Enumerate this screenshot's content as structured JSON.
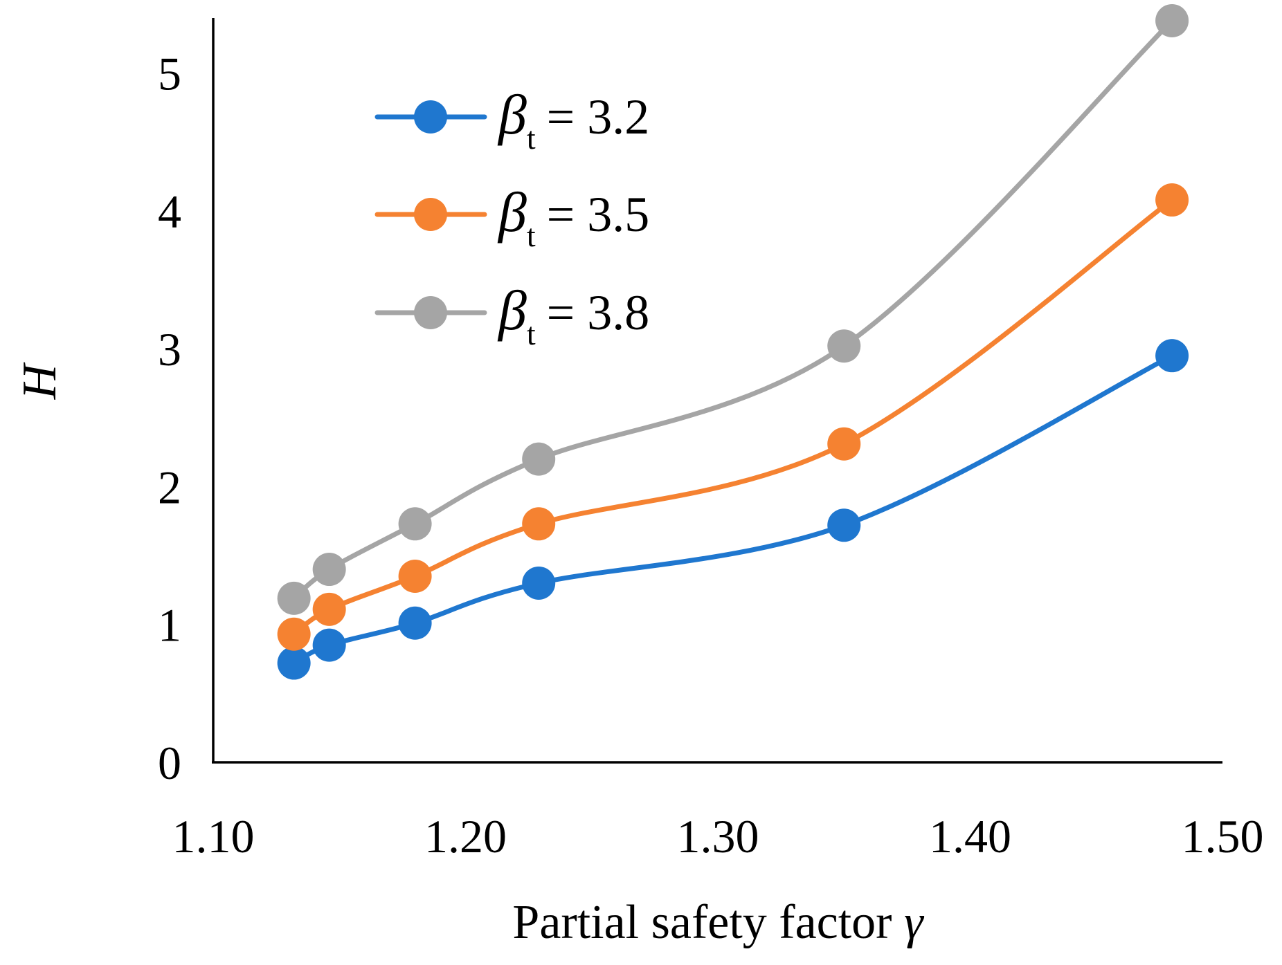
{
  "chart_data": {
    "type": "line",
    "smooth": true,
    "title": "",
    "xlabel": "Partial safety factor",
    "xlabel_symbol": "γ",
    "ylabel": "H",
    "xlim": [
      1.1,
      1.5
    ],
    "ylim": [
      0,
      5.4
    ],
    "xticks": [
      "1.10",
      "1.20",
      "1.30",
      "1.40",
      "1.50"
    ],
    "yticks": [
      "0",
      "1",
      "2",
      "3",
      "4",
      "5"
    ],
    "legend_position": "top-left",
    "x": [
      1.132,
      1.146,
      1.18,
      1.229,
      1.35,
      1.48
    ],
    "series": [
      {
        "name": "β_t = 3.2",
        "symbol": "β",
        "subscript": "t",
        "value_label": "= 3.2",
        "color": "#1F77CF",
        "values": [
          0.72,
          0.85,
          1.01,
          1.3,
          1.72,
          2.95
        ]
      },
      {
        "name": "β_t = 3.5",
        "symbol": "β",
        "subscript": "t",
        "value_label": "= 3.5",
        "color": "#F58231",
        "values": [
          0.93,
          1.11,
          1.35,
          1.73,
          2.31,
          4.08
        ]
      },
      {
        "name": "β_t = 3.8",
        "symbol": "β",
        "subscript": "t",
        "value_label": "= 3.8",
        "color": "#A5A5A5",
        "values": [
          1.19,
          1.4,
          1.73,
          2.2,
          3.02,
          5.38
        ]
      }
    ]
  }
}
